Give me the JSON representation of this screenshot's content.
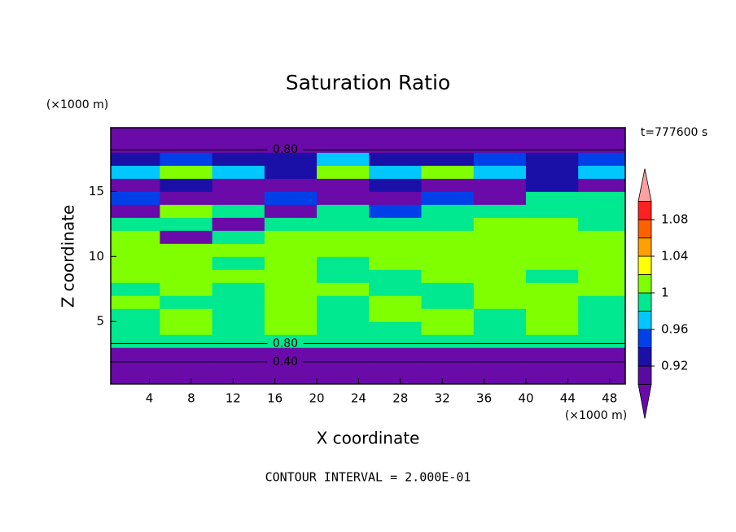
{
  "chart_data": {
    "type": "contour",
    "title": "Saturation Ratio",
    "x_unit": "(×1000 m)",
    "y_unit": "(×1000 m)",
    "x_label": "X coordinate",
    "y_label": "Z coordinate",
    "time_label": "t=777600 s",
    "footer": "CONTOUR INTERVAL = 2.000E-01",
    "xlim": [
      0.3,
      49.5
    ],
    "ylim": [
      0.2,
      19.9
    ],
    "xticks": [
      4,
      8,
      12,
      16,
      20,
      24,
      28,
      32,
      36,
      40,
      44,
      48
    ],
    "yticks": [
      5,
      10,
      15
    ],
    "x": [
      2.5,
      7.5,
      12.5,
      17.5,
      22.5,
      27.5,
      32.5,
      37.5,
      42.5,
      47.5
    ],
    "z": [
      0.5,
      1.5,
      2.5,
      3.5,
      4.5,
      5.5,
      6.5,
      7.5,
      8.5,
      9.5,
      10.5,
      11.5,
      12.5,
      13.5,
      14.5,
      15.5,
      16.5,
      17.5,
      18.5,
      19.5
    ],
    "values": [
      [
        0.4,
        0.4,
        0.4,
        0.4,
        0.4,
        0.4,
        0.4,
        0.4,
        0.4,
        0.4
      ],
      [
        0.5,
        0.5,
        0.5,
        0.5,
        0.5,
        0.5,
        0.5,
        0.5,
        0.5,
        0.5
      ],
      [
        0.7,
        0.7,
        0.7,
        0.7,
        0.7,
        0.7,
        0.7,
        0.7,
        0.7,
        0.7
      ],
      [
        0.99,
        0.99,
        0.99,
        0.99,
        0.99,
        0.99,
        0.99,
        0.99,
        0.99,
        0.99
      ],
      [
        0.99,
        1.01,
        0.99,
        1.01,
        0.99,
        0.99,
        1.01,
        0.99,
        1.01,
        0.99
      ],
      [
        0.99,
        1.01,
        0.99,
        1.01,
        0.99,
        1.01,
        1.01,
        0.99,
        1.01,
        0.99
      ],
      [
        1.01,
        0.99,
        0.99,
        1.01,
        0.99,
        1.01,
        0.99,
        1.01,
        1.01,
        0.99
      ],
      [
        0.99,
        1.01,
        0.99,
        1.01,
        1.01,
        0.99,
        0.99,
        1.01,
        1.01,
        1.01
      ],
      [
        1.01,
        1.01,
        1.01,
        1.01,
        0.99,
        0.99,
        1.01,
        1.01,
        0.99,
        1.01
      ],
      [
        1.01,
        1.01,
        0.99,
        1.01,
        0.99,
        1.01,
        1.01,
        1.01,
        1.01,
        1.01
      ],
      [
        1.01,
        1.01,
        1.01,
        1.01,
        1.01,
        1.01,
        1.01,
        1.01,
        1.01,
        1.01
      ],
      [
        1.01,
        0.87,
        0.99,
        1.01,
        1.01,
        1.01,
        1.01,
        1.01,
        1.01,
        1.01
      ],
      [
        0.99,
        0.99,
        0.87,
        0.99,
        0.99,
        0.99,
        0.99,
        1.01,
        1.01,
        0.99
      ],
      [
        0.87,
        1.01,
        0.99,
        0.87,
        0.99,
        0.95,
        0.99,
        0.99,
        0.99,
        0.99
      ],
      [
        0.95,
        0.87,
        0.87,
        0.95,
        0.87,
        0.87,
        0.95,
        0.87,
        0.99,
        0.99
      ],
      [
        0.87,
        0.93,
        0.87,
        0.87,
        0.87,
        0.93,
        0.87,
        0.87,
        0.93,
        0.87
      ],
      [
        0.97,
        1.01,
        0.97,
        0.93,
        1.01,
        0.97,
        1.01,
        0.97,
        0.93,
        0.97
      ],
      [
        0.93,
        0.95,
        0.93,
        0.93,
        0.97,
        0.93,
        0.93,
        0.95,
        0.93,
        0.95
      ],
      [
        0.8,
        0.8,
        0.8,
        0.8,
        0.8,
        0.8,
        0.8,
        0.8,
        0.8,
        0.8
      ],
      [
        0.7,
        0.7,
        0.7,
        0.7,
        0.7,
        0.7,
        0.7,
        0.7,
        0.7,
        0.7
      ]
    ],
    "contour_lines": [
      {
        "level": 0.8,
        "label": "0.80",
        "z": 18.2
      },
      {
        "level": 0.8,
        "label": "0.80",
        "z": 3.3
      },
      {
        "level": 0.4,
        "label": "0.40",
        "z": 1.9
      }
    ],
    "colorbar": {
      "levels": [
        0.9,
        0.92,
        0.94,
        0.96,
        0.98,
        1.0,
        1.02,
        1.04,
        1.06,
        1.08,
        1.1
      ],
      "colors": [
        "#5a0aa0",
        "#1a10a8",
        "#0040e8",
        "#00c8ff",
        "#00e890",
        "#80ff00",
        "#ffff00",
        "#ffa000",
        "#ff6000",
        "#ff2020"
      ],
      "under_color": "#6a0aa8",
      "over_color": "#ffa0a0",
      "ticks": [
        0.92,
        0.96,
        1,
        1.04,
        1.08
      ]
    }
  }
}
